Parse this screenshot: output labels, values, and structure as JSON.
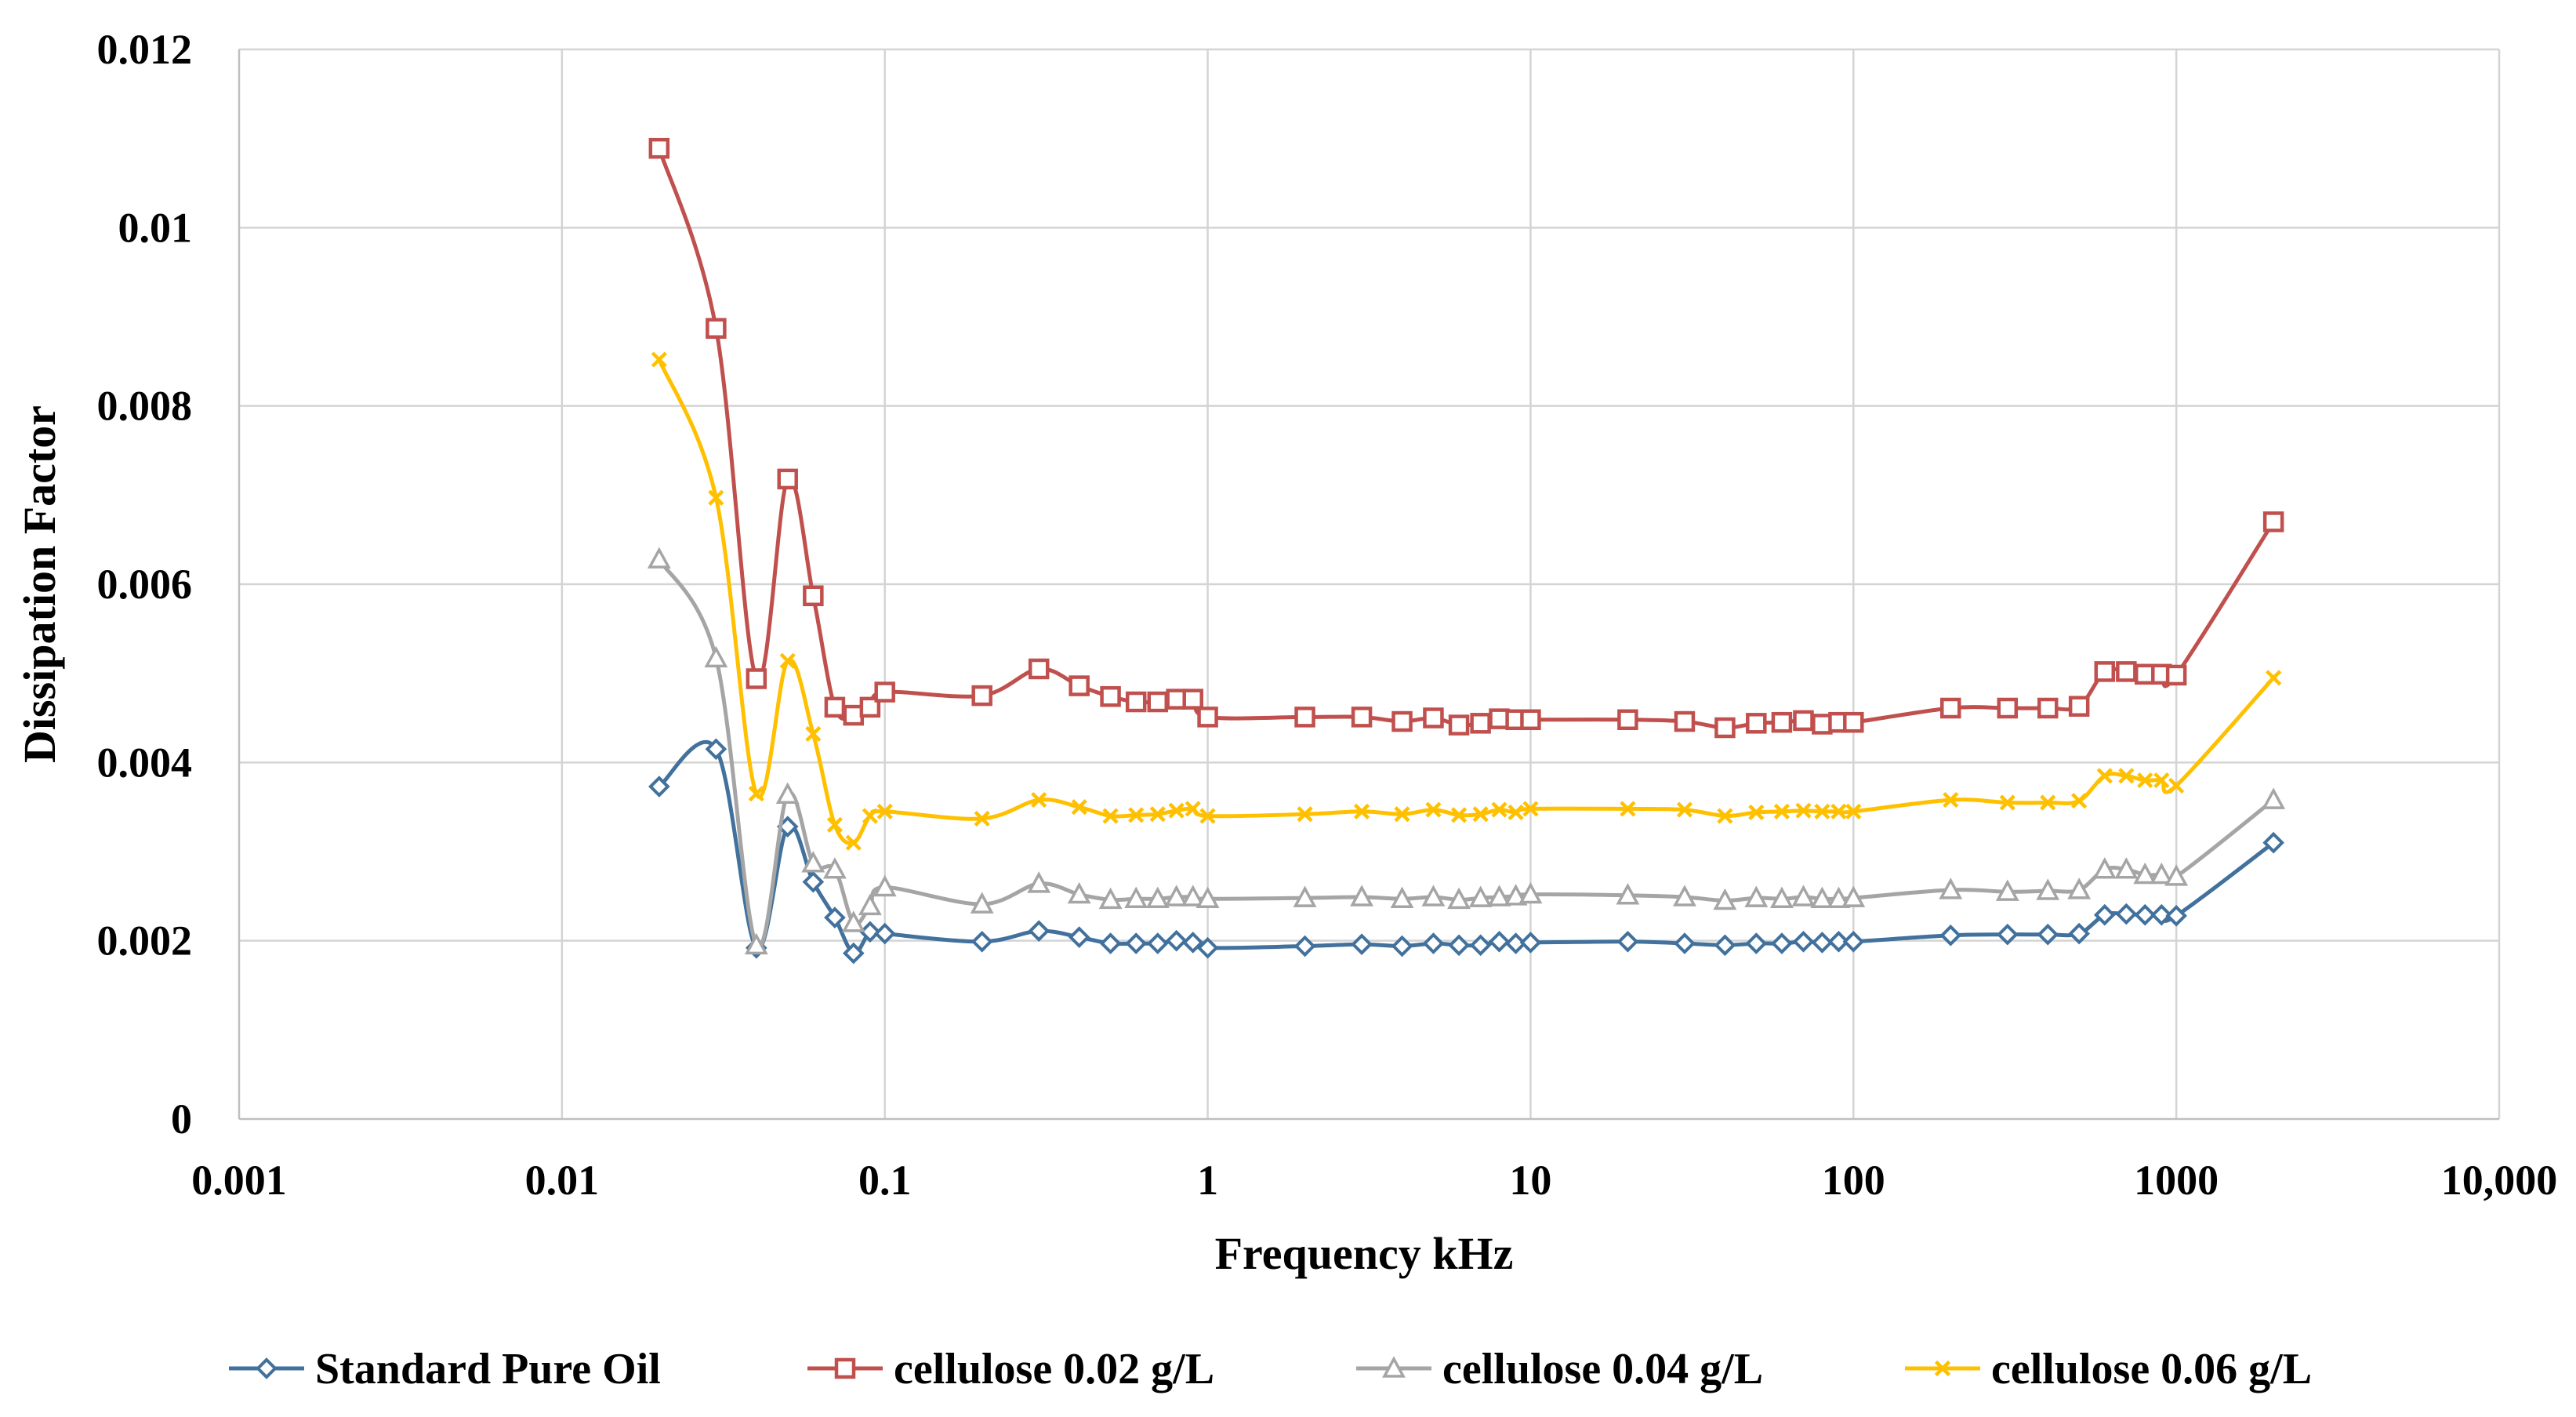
{
  "chart_data": {
    "type": "line",
    "title": "",
    "xlabel": "Frequency kHz",
    "ylabel": "Dissipation Factor",
    "xscale": "log",
    "xlim": [
      0.001,
      10000
    ],
    "ylim": [
      0,
      0.012
    ],
    "x_ticks": [
      0.001,
      0.01,
      0.1,
      1,
      10,
      100,
      1000,
      10000
    ],
    "x_tick_labels": [
      "0.001",
      "0.01",
      "0.1",
      "1",
      "10",
      "100",
      "1000",
      "10,000"
    ],
    "y_ticks": [
      0,
      0.002,
      0.004,
      0.006,
      0.008,
      0.01,
      0.012
    ],
    "y_tick_labels": [
      "0",
      "0.002",
      "0.004",
      "0.006",
      "0.008",
      "0.01",
      "0.012"
    ],
    "grid": true,
    "legend_position": "bottom",
    "x": [
      0.02,
      0.03,
      0.04,
      0.05,
      0.06,
      0.07,
      0.08,
      0.09,
      0.1,
      0.2,
      0.3,
      0.4,
      0.5,
      0.6,
      0.7,
      0.8,
      0.9,
      1,
      2,
      3,
      4,
      5,
      6,
      7,
      8,
      9,
      10,
      20,
      30,
      40,
      50,
      60,
      70,
      80,
      90,
      100,
      200,
      300,
      400,
      500,
      600,
      700,
      800,
      900,
      1000,
      2000
    ],
    "series": [
      {
        "name": "Standard Pure Oil",
        "color": "#41719c",
        "marker": "diamond",
        "values": [
          0.00373,
          0.00415,
          0.00192,
          0.00328,
          0.00266,
          0.00226,
          0.00186,
          0.0021,
          0.00208,
          0.00199,
          0.00211,
          0.00204,
          0.00197,
          0.00197,
          0.00197,
          0.002,
          0.00198,
          0.00192,
          0.00194,
          0.00196,
          0.00194,
          0.00197,
          0.00195,
          0.00195,
          0.00199,
          0.00197,
          0.00198,
          0.00199,
          0.00197,
          0.00195,
          0.00197,
          0.00197,
          0.00199,
          0.00198,
          0.00199,
          0.00199,
          0.00206,
          0.00207,
          0.00207,
          0.00208,
          0.00229,
          0.0023,
          0.00229,
          0.00229,
          0.00228,
          0.0031
        ]
      },
      {
        "name": "cellulose 0.02 g/L",
        "color": "#c0504d",
        "marker": "square",
        "values": [
          0.01089,
          0.00887,
          0.00494,
          0.00718,
          0.00587,
          0.00462,
          0.00453,
          0.00462,
          0.00479,
          0.00475,
          0.00505,
          0.00486,
          0.00474,
          0.00468,
          0.00468,
          0.00471,
          0.00471,
          0.00451,
          0.00451,
          0.00451,
          0.00446,
          0.0045,
          0.00442,
          0.00444,
          0.00449,
          0.00448,
          0.00448,
          0.00448,
          0.00446,
          0.00439,
          0.00444,
          0.00445,
          0.00447,
          0.00443,
          0.00445,
          0.00445,
          0.00461,
          0.00461,
          0.00461,
          0.00463,
          0.00502,
          0.00502,
          0.00499,
          0.00499,
          0.00498,
          0.0067
        ]
      },
      {
        "name": "cellulose 0.04 g/L",
        "color": "#a5a5a5",
        "marker": "triangle",
        "values": [
          0.00628,
          0.00517,
          0.00195,
          0.00364,
          0.00287,
          0.0028,
          0.0022,
          0.00239,
          0.0026,
          0.00241,
          0.00264,
          0.00252,
          0.00246,
          0.00247,
          0.00247,
          0.00249,
          0.00249,
          0.00247,
          0.00248,
          0.00249,
          0.00247,
          0.00249,
          0.00246,
          0.00248,
          0.00249,
          0.0025,
          0.00252,
          0.00251,
          0.00249,
          0.00245,
          0.00248,
          0.00247,
          0.00249,
          0.00247,
          0.00247,
          0.00248,
          0.00257,
          0.00255,
          0.00256,
          0.00257,
          0.0028,
          0.0028,
          0.00274,
          0.00274,
          0.00272,
          0.00358
        ]
      },
      {
        "name": "cellulose 0.06 g/L",
        "color": "#ffc000",
        "marker": "x",
        "values": [
          0.00852,
          0.00697,
          0.00365,
          0.00514,
          0.00432,
          0.0033,
          0.0031,
          0.0034,
          0.00345,
          0.00337,
          0.00358,
          0.0035,
          0.0034,
          0.00341,
          0.00342,
          0.00346,
          0.00348,
          0.0034,
          0.00342,
          0.00345,
          0.00342,
          0.00347,
          0.00341,
          0.00342,
          0.00347,
          0.00344,
          0.00348,
          0.00348,
          0.00347,
          0.0034,
          0.00344,
          0.00345,
          0.00346,
          0.00345,
          0.00345,
          0.00345,
          0.00358,
          0.00355,
          0.00355,
          0.00357,
          0.00385,
          0.00385,
          0.0038,
          0.0038,
          0.00374,
          0.00495
        ]
      }
    ]
  }
}
